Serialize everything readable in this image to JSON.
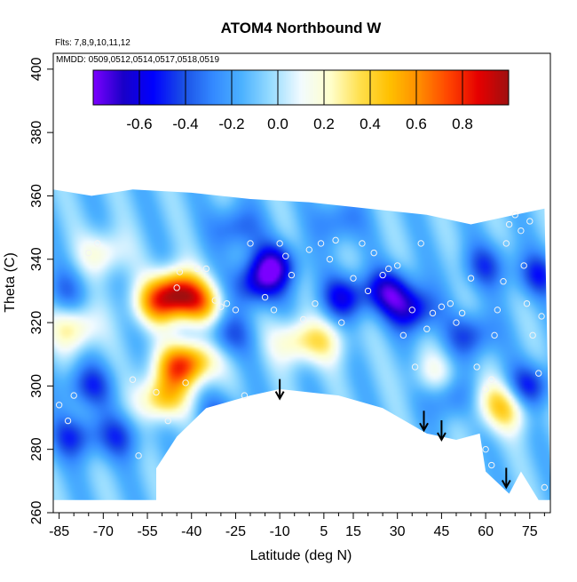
{
  "chart_data": {
    "type": "heatmap",
    "title": "ATOM4 Northbound W",
    "flights_note": "Flts: 7,8,9,10,11,12",
    "dates_note": "MMDD: 0509,0512,0514,0517,0518,0519",
    "xlabel": "Latitude (deg N)",
    "ylabel": "Theta (C)",
    "xlim": [
      -87,
      82
    ],
    "ylim": [
      260,
      405
    ],
    "x_ticks": [
      -85,
      -70,
      -55,
      -40,
      -25,
      -10,
      5,
      15,
      30,
      45,
      60,
      75
    ],
    "x_minor_ticks": [
      -80,
      -75,
      -65,
      -60,
      -50,
      -45,
      -35,
      -30,
      -20,
      -15,
      -5,
      0,
      10,
      20,
      25,
      35,
      40,
      50,
      55,
      65,
      70,
      80
    ],
    "y_ticks": [
      260,
      280,
      300,
      320,
      340,
      360,
      380,
      400
    ],
    "colorbar": {
      "range": [
        -0.8,
        1.0
      ],
      "ticks": [
        -0.6,
        -0.4,
        -0.2,
        0.0,
        0.2,
        0.4,
        0.6,
        0.8
      ],
      "tick_labels": [
        "-0.6",
        "-0.4",
        "-0.2",
        "0.0",
        "0.2",
        "0.4",
        "0.6",
        "0.8"
      ],
      "placement": "top, inside plot",
      "colors": [
        "#7b00ff",
        "#1a00c8",
        "#0000ff",
        "#1a4ee6",
        "#3388ff",
        "#4cb2ff",
        "#99ddff",
        "#f2fbff",
        "#ffffcc",
        "#ffe04d",
        "#ffc000",
        "#ff8c00",
        "#ff4400",
        "#e60000",
        "#a01010"
      ]
    },
    "arrows_latitude": [
      -10,
      39,
      45,
      67
    ],
    "arrows_theta": [
      296,
      286,
      283,
      268
    ],
    "ceiling_profile": [
      [
        -87,
        362
      ],
      [
        -74,
        360
      ],
      [
        -60,
        362
      ],
      [
        -40,
        361
      ],
      [
        -20,
        359
      ],
      [
        0,
        358
      ],
      [
        20,
        356
      ],
      [
        40,
        354
      ],
      [
        55,
        351
      ],
      [
        70,
        354
      ],
      [
        80,
        356
      ]
    ],
    "floor_profile": [
      [
        -87,
        264
      ],
      [
        -52,
        264
      ],
      [
        -52,
        274
      ],
      [
        -45,
        284
      ],
      [
        -35,
        293
      ],
      [
        -20,
        297
      ],
      [
        -10,
        299
      ],
      [
        0,
        298
      ],
      [
        10,
        297
      ],
      [
        25,
        293
      ],
      [
        40,
        285
      ],
      [
        50,
        283
      ],
      [
        58,
        285
      ],
      [
        60,
        273
      ],
      [
        68,
        266
      ],
      [
        72,
        273
      ],
      [
        78,
        264
      ],
      [
        82,
        264
      ]
    ],
    "anomalies": [
      {
        "lat": -45,
        "theta": 330,
        "value": 0.75
      },
      {
        "lat": -52,
        "theta": 326,
        "value": 0.55
      },
      {
        "lat": -38,
        "theta": 326,
        "value": 0.6
      },
      {
        "lat": -45,
        "theta": 306,
        "value": 0.6
      },
      {
        "lat": -38,
        "theta": 308,
        "value": 0.45
      },
      {
        "lat": -50,
        "theta": 296,
        "value": 0.55
      },
      {
        "lat": -70,
        "theta": 342,
        "value": 0.3
      },
      {
        "lat": -80,
        "theta": 318,
        "value": 0.4
      },
      {
        "lat": -5,
        "theta": 314,
        "value": 0.35
      },
      {
        "lat": 5,
        "theta": 314,
        "value": 0.3
      },
      {
        "lat": 67,
        "theta": 292,
        "value": 0.35
      },
      {
        "lat": 62,
        "theta": 296,
        "value": 0.25
      },
      {
        "lat": 42,
        "theta": 304,
        "value": 0.2
      },
      {
        "lat": -12,
        "theta": 338,
        "value": -0.55
      },
      {
        "lat": -18,
        "theta": 332,
        "value": -0.45
      },
      {
        "lat": 12,
        "theta": 328,
        "value": -0.45
      },
      {
        "lat": 27,
        "theta": 330,
        "value": -0.5
      },
      {
        "lat": 35,
        "theta": 324,
        "value": -0.5
      },
      {
        "lat": 55,
        "theta": 316,
        "value": -0.35
      },
      {
        "lat": 75,
        "theta": 300,
        "value": -0.4
      },
      {
        "lat": -75,
        "theta": 300,
        "value": -0.35
      },
      {
        "lat": -80,
        "theta": 284,
        "value": -0.35
      },
      {
        "lat": -65,
        "theta": 284,
        "value": -0.3
      },
      {
        "lat": -28,
        "theta": 316,
        "value": -0.3
      },
      {
        "lat": 48,
        "theta": 296,
        "value": -0.25
      },
      {
        "lat": -25,
        "theta": 350,
        "value": -0.3
      },
      {
        "lat": 10,
        "theta": 352,
        "value": -0.25
      },
      {
        "lat": 60,
        "theta": 338,
        "value": -0.3
      },
      {
        "lat": -30,
        "theta": 290,
        "value": -0.25
      },
      {
        "lat": -83,
        "theta": 330,
        "value": -0.2
      },
      {
        "lat": 78,
        "theta": 335,
        "value": -0.35
      }
    ],
    "sample_points": [
      [
        -85,
        294
      ],
      [
        -82,
        289
      ],
      [
        -80,
        297
      ],
      [
        -75,
        342
      ],
      [
        -72,
        345
      ],
      [
        -60,
        302
      ],
      [
        -58,
        278
      ],
      [
        -52,
        298
      ],
      [
        -48,
        289
      ],
      [
        -45,
        331
      ],
      [
        -44,
        336
      ],
      [
        -42,
        301
      ],
      [
        -38,
        337
      ],
      [
        -35,
        337
      ],
      [
        -32,
        327
      ],
      [
        -30,
        325
      ],
      [
        -28,
        326
      ],
      [
        -25,
        324
      ],
      [
        -22,
        297
      ],
      [
        -20,
        345
      ],
      [
        -15,
        328
      ],
      [
        -12,
        324
      ],
      [
        -10,
        345
      ],
      [
        -8,
        341
      ],
      [
        -6,
        335
      ],
      [
        -2,
        321
      ],
      [
        0,
        343
      ],
      [
        2,
        326
      ],
      [
        4,
        345
      ],
      [
        7,
        340
      ],
      [
        9,
        346
      ],
      [
        11,
        320
      ],
      [
        15,
        334
      ],
      [
        18,
        345
      ],
      [
        20,
        330
      ],
      [
        22,
        342
      ],
      [
        25,
        335
      ],
      [
        27,
        337
      ],
      [
        30,
        338
      ],
      [
        32,
        316
      ],
      [
        35,
        324
      ],
      [
        36,
        306
      ],
      [
        38,
        345
      ],
      [
        40,
        318
      ],
      [
        42,
        323
      ],
      [
        45,
        325
      ],
      [
        48,
        326
      ],
      [
        50,
        320
      ],
      [
        52,
        323
      ],
      [
        55,
        334
      ],
      [
        57,
        306
      ],
      [
        60,
        299
      ],
      [
        62,
        302
      ],
      [
        63,
        316
      ],
      [
        64,
        324
      ],
      [
        66,
        333
      ],
      [
        67,
        345
      ],
      [
        68,
        351
      ],
      [
        70,
        354
      ],
      [
        72,
        349
      ],
      [
        73,
        338
      ],
      [
        74,
        326
      ],
      [
        75,
        352
      ],
      [
        76,
        316
      ],
      [
        78,
        304
      ],
      [
        79,
        322
      ],
      [
        80,
        268
      ],
      [
        60,
        280
      ],
      [
        62,
        275
      ]
    ]
  }
}
